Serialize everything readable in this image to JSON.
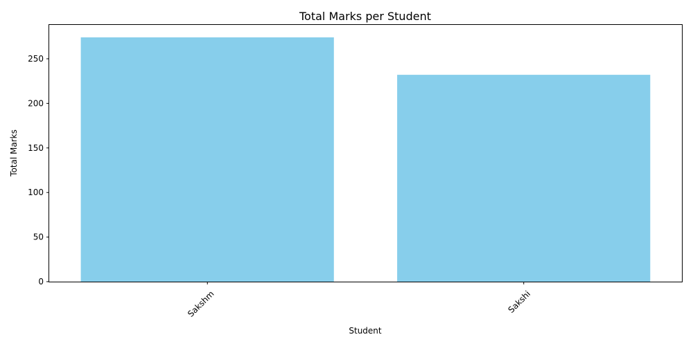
{
  "chart_data": {
    "type": "bar",
    "title": "Total Marks per Student",
    "xlabel": "Student",
    "ylabel": "Total Marks",
    "categories": [
      "Sakshm",
      "Sakshi"
    ],
    "values": [
      274,
      232
    ],
    "ylim": [
      0,
      288
    ],
    "yticks": [
      0,
      50,
      100,
      150,
      200,
      250
    ],
    "x_tick_rotation_deg": 45,
    "bar_color": "#87ceeb",
    "grid": false,
    "legend": "none"
  }
}
